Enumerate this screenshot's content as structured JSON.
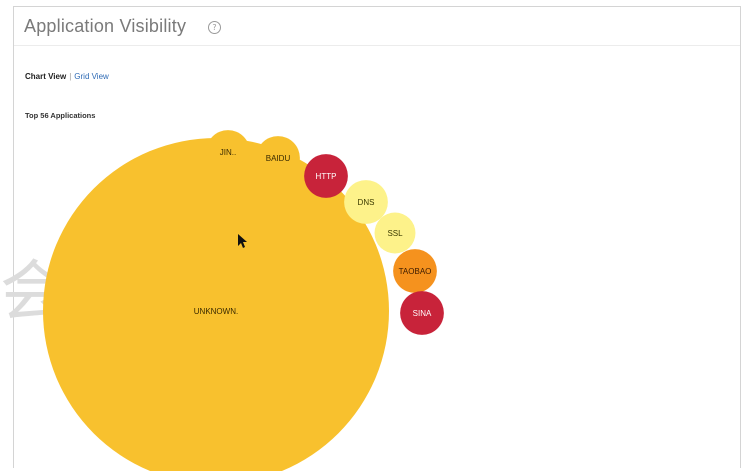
{
  "page": {
    "title": "Application Visibility",
    "help_glyph": "?"
  },
  "view_toggle": {
    "chart_label": "Chart View",
    "separator": "|",
    "grid_label": "Grid View"
  },
  "section_title": "Top 56 Applications",
  "watermark_glyph": "会",
  "chart_data": {
    "type": "bubble",
    "title": "Top 56 Applications",
    "bubbles": [
      {
        "label": "UNKNOWN.",
        "value": 100,
        "color": "#f8c12e",
        "label_color": "#3a2a00"
      },
      {
        "label": "JIN..",
        "value": 1.6,
        "color": "#f8c12e",
        "label_color": "#3a2a00"
      },
      {
        "label": "BAIDU",
        "value": 1.6,
        "color": "#f8c12e",
        "label_color": "#3a2a00"
      },
      {
        "label": "HTTP",
        "value": 1.6,
        "color": "#c8233a",
        "label_color": "#ffffff"
      },
      {
        "label": "DNS",
        "value": 1.6,
        "color": "#fdf28a",
        "label_color": "#3a3a00"
      },
      {
        "label": "SSL",
        "value": 1.4,
        "color": "#fdf28a",
        "label_color": "#3a3a00"
      },
      {
        "label": "TAOBAO",
        "value": 1.6,
        "color": "#f5921e",
        "label_color": "#3a1a00"
      },
      {
        "label": "SINA",
        "value": 1.6,
        "color": "#c8233a",
        "label_color": "#ffffff"
      }
    ]
  }
}
